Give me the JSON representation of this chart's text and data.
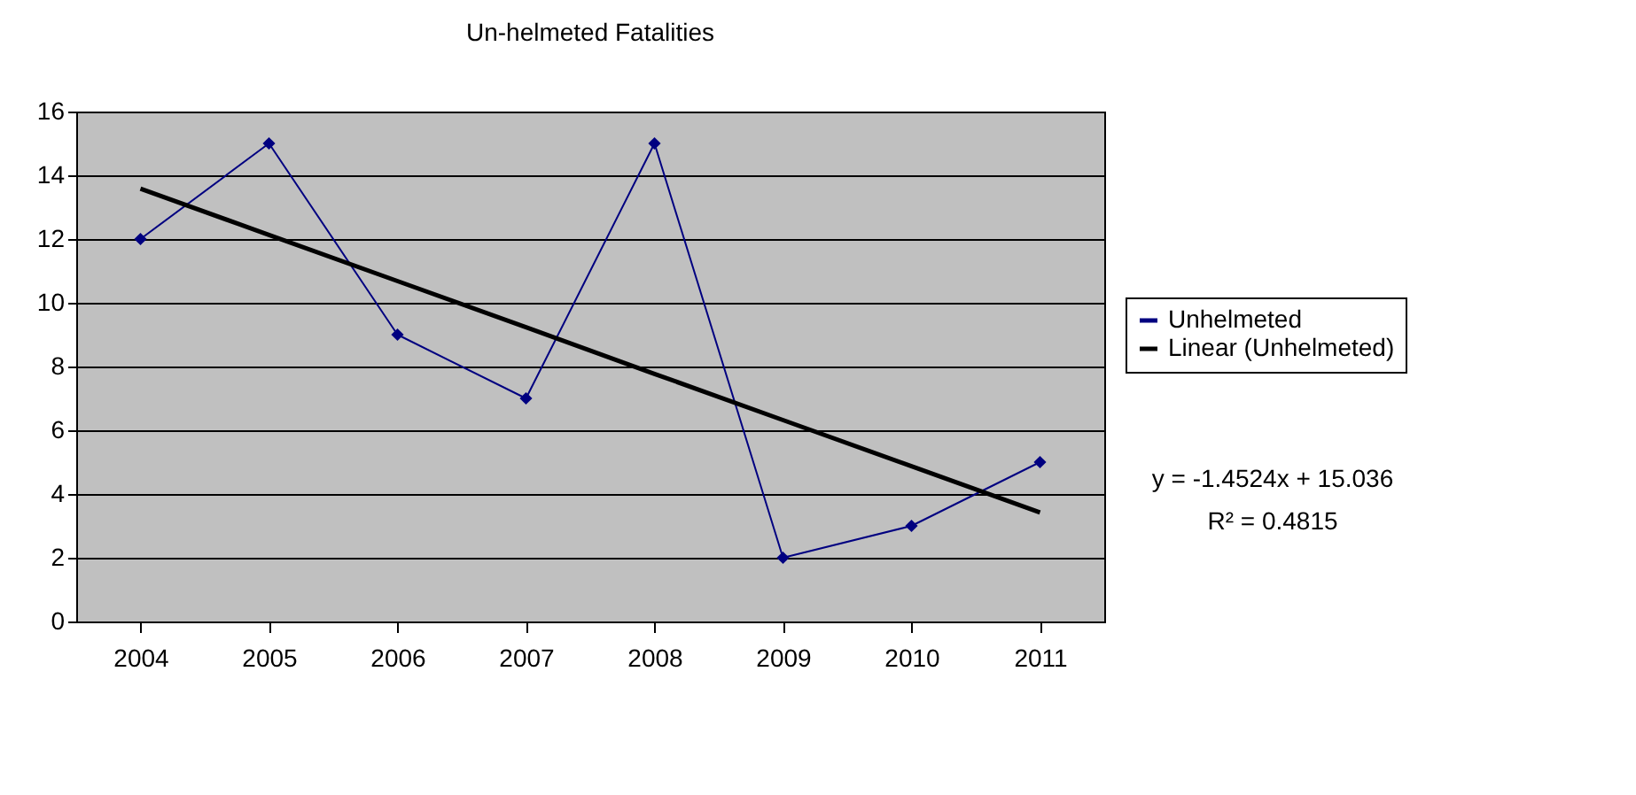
{
  "chart_data": {
    "type": "line",
    "title": "Un-helmeted Fatalities",
    "categories": [
      "2004",
      "2005",
      "2006",
      "2007",
      "2008",
      "2009",
      "2010",
      "2011"
    ],
    "series": [
      {
        "name": "Unhelmeted",
        "color": "#000080",
        "values": [
          12,
          15,
          9,
          7,
          15,
          2,
          3,
          5
        ],
        "marker": "diamond"
      },
      {
        "name": "Linear (Unhelmeted)",
        "color": "#000000",
        "type": "line",
        "marker": "none",
        "values": [
          13.58,
          12.13,
          10.68,
          9.23,
          7.77,
          6.32,
          4.87,
          3.42
        ]
      }
    ],
    "ylim": [
      0,
      16
    ],
    "yticks": [
      0,
      2,
      4,
      6,
      8,
      10,
      12,
      14,
      16
    ],
    "grid": "y",
    "legend": "right",
    "annotations": [
      "y = -1.4524x + 15.036",
      "R² = 0.4815"
    ]
  }
}
